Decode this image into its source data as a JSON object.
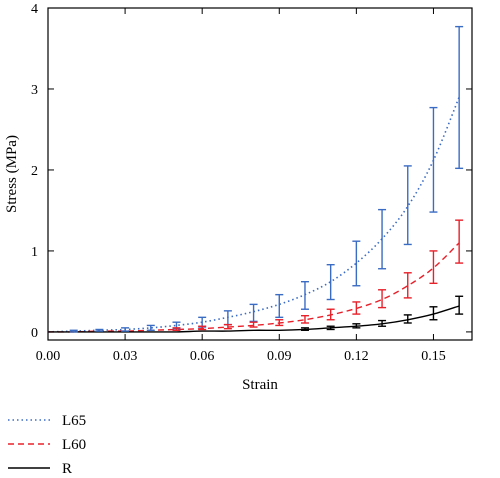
{
  "chart_data": {
    "type": "line",
    "xlabel": "Strain",
    "ylabel": "Stress (MPa)",
    "xlim": [
      0.0,
      0.165
    ],
    "ylim": [
      -0.1,
      4.0
    ],
    "xticks": [
      0.0,
      0.03,
      0.06,
      0.09,
      0.12,
      0.15
    ],
    "xtick_labels": [
      "0.00",
      "0.03",
      "0.06",
      "0.09",
      "0.12",
      "0.15"
    ],
    "yticks": [
      0,
      1,
      2,
      3,
      4
    ],
    "ytick_labels": [
      "0",
      "1",
      "2",
      "3",
      "4"
    ],
    "grid": false,
    "legend_position": "below plot, left",
    "x": [
      0.0,
      0.01,
      0.02,
      0.03,
      0.04,
      0.05,
      0.06,
      0.07,
      0.08,
      0.09,
      0.1,
      0.11,
      0.12,
      0.13,
      0.14,
      0.15,
      0.16
    ],
    "series": [
      {
        "name": "L65",
        "style": "dotted",
        "color": "#3b6cc4",
        "values": [
          0.0,
          0.01,
          0.02,
          0.03,
          0.05,
          0.08,
          0.12,
          0.18,
          0.25,
          0.34,
          0.46,
          0.62,
          0.85,
          1.15,
          1.55,
          2.12,
          2.9
        ],
        "error_low": [
          null,
          0.0,
          0.01,
          0.01,
          0.02,
          0.04,
          0.06,
          0.09,
          0.13,
          0.18,
          0.28,
          0.4,
          0.57,
          0.78,
          1.08,
          1.48,
          2.02
        ],
        "error_high": [
          null,
          0.02,
          0.03,
          0.05,
          0.08,
          0.12,
          0.18,
          0.26,
          0.34,
          0.46,
          0.62,
          0.83,
          1.12,
          1.51,
          2.05,
          2.77,
          3.77
        ]
      },
      {
        "name": "L60",
        "style": "dashed",
        "color": "#e8202a",
        "values": [
          0.0,
          0.0,
          0.01,
          0.01,
          0.02,
          0.03,
          0.04,
          0.06,
          0.08,
          0.11,
          0.15,
          0.21,
          0.29,
          0.4,
          0.57,
          0.79,
          1.1
        ],
        "error_low": [
          null,
          null,
          null,
          null,
          null,
          0.02,
          0.03,
          0.04,
          0.06,
          0.08,
          0.11,
          0.15,
          0.22,
          0.3,
          0.42,
          0.6,
          0.85
        ],
        "error_high": [
          null,
          null,
          null,
          null,
          null,
          0.05,
          0.07,
          0.09,
          0.12,
          0.15,
          0.2,
          0.28,
          0.37,
          0.52,
          0.73,
          1.0,
          1.38
        ]
      },
      {
        "name": "R",
        "style": "solid",
        "color": "#000000",
        "values": [
          0.0,
          0.0,
          0.0,
          0.0,
          0.0,
          0.0,
          0.01,
          0.01,
          0.02,
          0.02,
          0.03,
          0.05,
          0.07,
          0.1,
          0.15,
          0.22,
          0.32
        ],
        "error_low": [
          null,
          null,
          null,
          null,
          null,
          null,
          null,
          null,
          null,
          null,
          0.02,
          0.03,
          0.05,
          0.07,
          0.11,
          0.15,
          0.22
        ],
        "error_high": [
          null,
          null,
          null,
          null,
          null,
          null,
          null,
          null,
          null,
          null,
          0.05,
          0.07,
          0.1,
          0.14,
          0.21,
          0.31,
          0.44
        ]
      }
    ]
  },
  "legend": {
    "items": [
      {
        "label": "L65",
        "style": "dotted",
        "color": "#3b6cc4"
      },
      {
        "label": "L60",
        "style": "dashed",
        "color": "#e8202a"
      },
      {
        "label": "R",
        "style": "solid",
        "color": "#000000"
      }
    ]
  }
}
